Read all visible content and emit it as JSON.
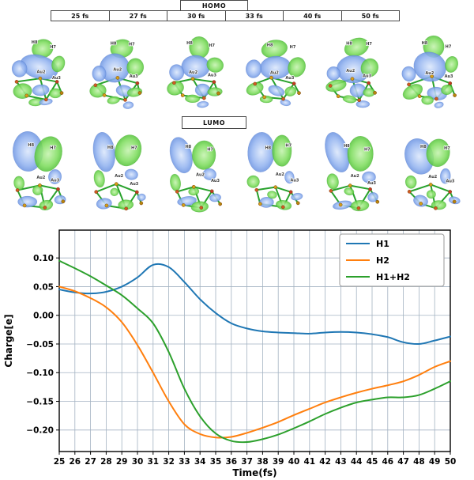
{
  "figure": {
    "homo_label": "HOMO",
    "lumo_label": "LUMO",
    "time_labels": [
      "25 fs",
      "27 fs",
      "30 fs",
      "33 fs",
      "40 fs",
      "50 fs"
    ],
    "atom_labels": [
      "H8",
      "H7",
      "Au2",
      "Au3"
    ],
    "orbital_colors": {
      "positive_lobe": "#7fdd5f",
      "negative_lobe": "#94b4f0",
      "bond": "#28a22c"
    }
  },
  "chart_data": {
    "type": "line",
    "title": "",
    "xlabel": "Time(fs)",
    "ylabel": "Charge[e]",
    "x": [
      25,
      26,
      27,
      28,
      29,
      30,
      31,
      32,
      33,
      34,
      35,
      36,
      37,
      38,
      39,
      40,
      41,
      42,
      43,
      44,
      45,
      46,
      47,
      48,
      49,
      50
    ],
    "series": [
      {
        "name": "H1",
        "color": "#1f77b4",
        "values": [
          0.045,
          0.04,
          0.038,
          0.041,
          0.05,
          0.066,
          0.088,
          0.084,
          0.058,
          0.028,
          0.004,
          -0.014,
          -0.023,
          -0.028,
          -0.03,
          -0.031,
          -0.032,
          -0.03,
          -0.029,
          -0.03,
          -0.033,
          -0.038,
          -0.047,
          -0.05,
          -0.044,
          -0.037
        ]
      },
      {
        "name": "H2",
        "color": "#ff7f0e",
        "values": [
          0.05,
          0.042,
          0.03,
          0.014,
          -0.012,
          -0.052,
          -0.1,
          -0.15,
          -0.19,
          -0.207,
          -0.213,
          -0.212,
          -0.205,
          -0.196,
          -0.186,
          -0.174,
          -0.163,
          -0.152,
          -0.143,
          -0.135,
          -0.128,
          -0.122,
          -0.115,
          -0.104,
          -0.09,
          -0.08
        ]
      },
      {
        "name": "H1+H2",
        "color": "#2ca02c",
        "values": [
          0.095,
          0.082,
          0.068,
          0.052,
          0.035,
          0.012,
          -0.014,
          -0.064,
          -0.128,
          -0.176,
          -0.206,
          -0.219,
          -0.221,
          -0.216,
          -0.208,
          -0.197,
          -0.185,
          -0.172,
          -0.161,
          -0.152,
          -0.147,
          -0.143,
          -0.143,
          -0.139,
          -0.128,
          -0.115
        ]
      }
    ],
    "xlim": [
      25,
      50
    ],
    "ylim": [
      -0.2375,
      0.1485
    ],
    "xticks": [
      25,
      26,
      27,
      28,
      29,
      30,
      31,
      32,
      33,
      34,
      35,
      36,
      37,
      38,
      39,
      40,
      41,
      42,
      43,
      44,
      45,
      46,
      47,
      48,
      49,
      50
    ],
    "yticks": [
      0.1,
      0.05,
      0.0,
      -0.05,
      -0.1,
      -0.15,
      -0.2
    ],
    "grid": true,
    "legend_position": "upper right"
  }
}
